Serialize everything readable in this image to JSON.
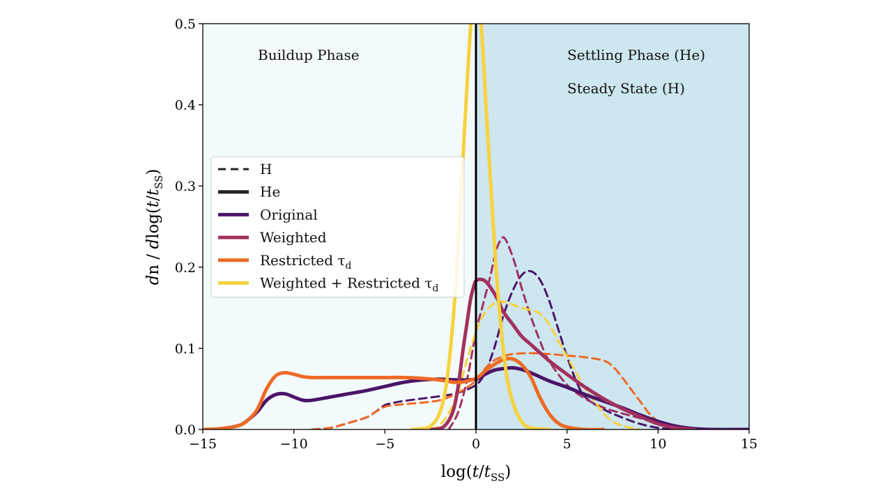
{
  "chart_data": {
    "type": "line",
    "title": "",
    "xlabel": "log(t/t_SS)",
    "ylabel": "dn / dlog(t/t_SS)",
    "xlim": [
      -15,
      15
    ],
    "ylim": [
      0,
      0.5
    ],
    "xticks": [
      -15,
      -10,
      -5,
      0,
      5,
      10,
      15
    ],
    "xtick_labels": [
      "−15",
      "−10",
      "−5",
      "0",
      "5",
      "10",
      "15"
    ],
    "yticks": [
      0.0,
      0.1,
      0.2,
      0.3,
      0.4,
      0.5
    ],
    "ytick_labels": [
      "0.0",
      "0.1",
      "0.2",
      "0.3",
      "0.4",
      "0.5"
    ],
    "grid": false,
    "legend_position": "center-left",
    "regions": [
      {
        "label": "Buildup Phase",
        "x_range": [
          -15,
          0
        ],
        "color": "#f3fafb"
      },
      {
        "label": "Settling Phase (He)",
        "label2": "Steady State (H)",
        "x_range": [
          0,
          15
        ],
        "color": "#cde6ef"
      }
    ],
    "vertical_line": {
      "x": 0,
      "color": "#000000"
    },
    "legend": [
      {
        "label": "H",
        "style": "dashed",
        "color": "#222222"
      },
      {
        "label": "He",
        "style": "solid",
        "color": "#222222"
      },
      {
        "label": "Original",
        "style": "solid",
        "color": "#4a1468"
      },
      {
        "label": "Weighted",
        "style": "solid",
        "color": "#a2305e"
      },
      {
        "label": "Restricted τ",
        "subscript": "d",
        "style": "solid",
        "color": "#ee6a24"
      },
      {
        "label": "Weighted + Restricted τ",
        "subscript": "d",
        "style": "solid",
        "color": "#f6d23e"
      }
    ],
    "series": [
      {
        "legend_index": 2,
        "element": "He",
        "color": "#4a1468",
        "dashed": false,
        "x": [
          -15,
          -14,
          -13,
          -12.5,
          -12,
          -11.5,
          -11,
          -10.5,
          -10,
          -9.5,
          -9,
          -8,
          -7,
          -6,
          -5,
          -4,
          -3,
          -2,
          -1,
          0,
          0.5,
          1,
          1.5,
          2,
          2.5,
          3,
          4,
          5,
          6,
          7,
          8,
          9,
          10,
          11,
          12,
          13,
          15
        ],
        "y": [
          0,
          0.001,
          0.005,
          0.012,
          0.022,
          0.036,
          0.043,
          0.044,
          0.04,
          0.036,
          0.036,
          0.04,
          0.044,
          0.048,
          0.053,
          0.058,
          0.061,
          0.062,
          0.061,
          0.062,
          0.068,
          0.073,
          0.075,
          0.076,
          0.074,
          0.07,
          0.06,
          0.052,
          0.043,
          0.035,
          0.027,
          0.018,
          0.01,
          0.004,
          0.001,
          0,
          0
        ]
      },
      {
        "legend_index": 3,
        "element": "He",
        "color": "#a2305e",
        "dashed": false,
        "x": [
          -2.5,
          -1.8,
          -1.3,
          -1,
          -0.7,
          -0.5,
          -0.3,
          -0.1,
          0,
          0.2,
          0.5,
          0.8,
          1.2,
          1.5,
          2,
          2.5,
          3,
          4,
          5,
          6,
          7,
          8,
          9,
          10,
          11,
          12
        ],
        "y": [
          0,
          0.003,
          0.02,
          0.05,
          0.1,
          0.13,
          0.16,
          0.178,
          0.183,
          0.185,
          0.183,
          0.175,
          0.16,
          0.145,
          0.13,
          0.115,
          0.105,
          0.085,
          0.068,
          0.052,
          0.038,
          0.026,
          0.016,
          0.007,
          0.002,
          0
        ]
      },
      {
        "legend_index": 4,
        "element": "He",
        "color": "#ee6a24",
        "dashed": false,
        "x": [
          -15,
          -14,
          -13,
          -12.5,
          -12,
          -11.5,
          -11,
          -10.5,
          -10,
          -9.5,
          -9,
          -8,
          -7,
          -6,
          -5,
          -4,
          -3,
          -2,
          -1,
          0,
          0.5,
          1,
          1.5,
          2,
          2.5,
          3,
          3.5,
          4,
          4.5,
          5,
          6,
          7
        ],
        "y": [
          0,
          0.001,
          0.005,
          0.012,
          0.025,
          0.05,
          0.066,
          0.07,
          0.068,
          0.065,
          0.064,
          0.064,
          0.064,
          0.064,
          0.064,
          0.064,
          0.063,
          0.061,
          0.058,
          0.063,
          0.072,
          0.08,
          0.086,
          0.087,
          0.08,
          0.065,
          0.04,
          0.02,
          0.008,
          0.003,
          0,
          0
        ]
      },
      {
        "legend_index": 5,
        "element": "He",
        "color": "#f6d23e",
        "dashed": false,
        "x": [
          -3.5,
          -3,
          -2.5,
          -2,
          -1.6,
          -1.2,
          -0.9,
          -0.6,
          -0.4,
          -0.25,
          -0.1,
          0,
          0.1,
          0.25,
          0.4,
          0.6,
          0.9,
          1.2,
          1.6,
          2,
          2.5,
          3,
          4
        ],
        "y": [
          0,
          0.001,
          0.004,
          0.02,
          0.06,
          0.15,
          0.26,
          0.38,
          0.46,
          0.51,
          0.55,
          0.56,
          0.55,
          0.51,
          0.46,
          0.38,
          0.27,
          0.17,
          0.08,
          0.035,
          0.01,
          0.002,
          0
        ]
      },
      {
        "legend_index": 2,
        "element": "H",
        "color": "#4a1468",
        "dashed": true,
        "x": [
          -9,
          -8,
          -7,
          -6,
          -5.5,
          -5,
          -4.5,
          -4,
          -3,
          -2,
          -1,
          0,
          0.5,
          1,
          1.5,
          2,
          2.5,
          3,
          3.5,
          4,
          4.5,
          5,
          5.5,
          6,
          7,
          8,
          9,
          10,
          11
        ],
        "y": [
          0,
          0.002,
          0.008,
          0.015,
          0.022,
          0.03,
          0.033,
          0.035,
          0.038,
          0.041,
          0.045,
          0.055,
          0.07,
          0.1,
          0.14,
          0.17,
          0.19,
          0.195,
          0.185,
          0.16,
          0.125,
          0.09,
          0.06,
          0.04,
          0.025,
          0.015,
          0.007,
          0.002,
          0
        ]
      },
      {
        "legend_index": 3,
        "element": "H",
        "color": "#a2305e",
        "dashed": true,
        "x": [
          -1.5,
          -1,
          -0.5,
          0,
          0.4,
          0.8,
          1.1,
          1.4,
          1.6,
          1.9,
          2.2,
          2.5,
          3,
          3.5,
          4,
          5,
          6,
          7,
          8,
          9,
          10,
          10.5,
          11
        ],
        "y": [
          0,
          0.02,
          0.06,
          0.12,
          0.155,
          0.19,
          0.22,
          0.235,
          0.235,
          0.22,
          0.2,
          0.175,
          0.14,
          0.11,
          0.085,
          0.055,
          0.038,
          0.027,
          0.02,
          0.014,
          0.007,
          0.004,
          0
        ]
      },
      {
        "legend_index": 4,
        "element": "H",
        "color": "#ee6a24",
        "dashed": true,
        "x": [
          -9,
          -8,
          -7,
          -6,
          -5.5,
          -5,
          -4.5,
          -4,
          -3,
          -2,
          -1,
          0,
          0.5,
          1,
          1.5,
          2,
          3,
          4,
          5,
          6,
          7,
          7.5,
          8,
          8.5,
          9,
          9.5,
          10,
          10.5,
          11,
          11.5
        ],
        "y": [
          0,
          0.002,
          0.008,
          0.015,
          0.022,
          0.028,
          0.03,
          0.031,
          0.033,
          0.036,
          0.045,
          0.06,
          0.075,
          0.085,
          0.09,
          0.093,
          0.094,
          0.093,
          0.091,
          0.089,
          0.085,
          0.078,
          0.065,
          0.05,
          0.035,
          0.02,
          0.01,
          0.004,
          0.001,
          0
        ]
      },
      {
        "legend_index": 5,
        "element": "H",
        "color": "#f6d23e",
        "dashed": true,
        "x": [
          -2.5,
          -2,
          -1.5,
          -1,
          -0.5,
          0,
          0.4,
          0.8,
          1.2,
          1.6,
          2,
          2.5,
          3,
          3.5,
          4,
          4.5,
          5,
          5.5,
          6,
          6.5,
          7,
          7.5,
          8,
          8.5,
          9
        ],
        "y": [
          0,
          0.005,
          0.02,
          0.045,
          0.085,
          0.12,
          0.14,
          0.152,
          0.157,
          0.157,
          0.154,
          0.15,
          0.147,
          0.143,
          0.13,
          0.11,
          0.09,
          0.07,
          0.05,
          0.035,
          0.02,
          0.01,
          0.005,
          0.002,
          0
        ]
      }
    ]
  }
}
